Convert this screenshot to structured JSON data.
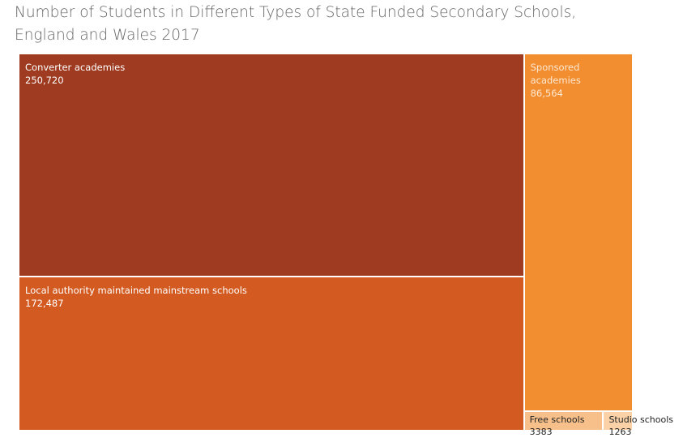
{
  "chart_data": {
    "type": "treemap",
    "title": "Number of Students in Different Types of State Funded Secondary Schools, England and Wales 2017",
    "categories": [
      "Converter academies",
      "Local authority maintained mainstream schools",
      "Sponsored academies",
      "Free schools",
      "Studio schools"
    ],
    "values": [
      250720,
      172487,
      86564,
      3383,
      1263
    ],
    "value_labels": [
      "250,720",
      "172,487",
      "86,564",
      "3383",
      "1263"
    ],
    "colors": [
      "#9e3b20",
      "#d35a20",
      "#f28e2f",
      "#f7c08b",
      "#fbd2a8"
    ],
    "label_colors": [
      "#ffffff",
      "#ffffff",
      "#fde8d3",
      "#222222",
      "#222222"
    ]
  }
}
